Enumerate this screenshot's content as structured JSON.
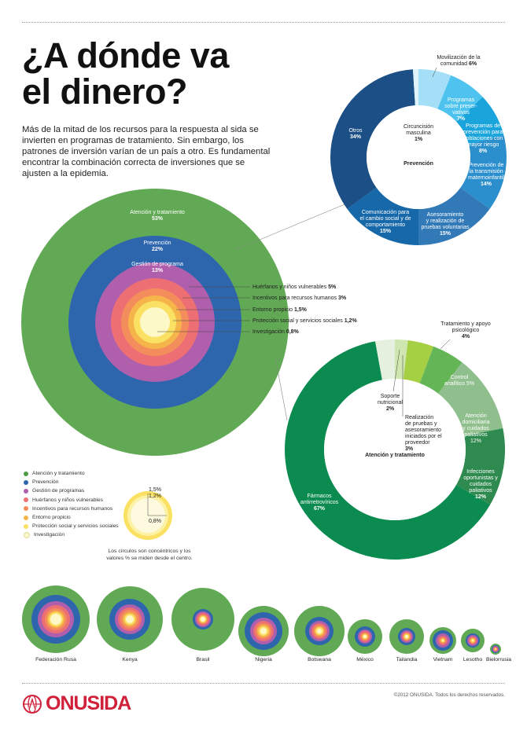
{
  "title_line1": "¿A dónde va",
  "title_line2": "el dinero?",
  "intro": "Más de la mitad de los recursos para la respuesta al sida se invierten en programas de tratamiento. Sin embargo, los patrones de inversión varían de un país a otro. Es fundamental encontrar la combinación correcta de inversiones que se ajusten a la epidemia.",
  "chart_data": [
    {
      "type": "concentric-circles",
      "rings": [
        {
          "name": "Atención y tratamiento",
          "value": 53,
          "label": "Atención y tratamiento",
          "value_label": "53%",
          "color": "#62a955"
        },
        {
          "name": "Prevención",
          "value": 22,
          "label": "Prevención",
          "value_label": "22%",
          "color": "#2e66ae"
        },
        {
          "name": "Gestión de programa",
          "value": 13,
          "label": "Gestión de programa",
          "value_label": "13%",
          "color": "#b05fad"
        },
        {
          "name": "Huérfanos y niños vulnerables",
          "value": 5,
          "label": "Huérfanos y niños vulnerables",
          "value_label": "5%",
          "color": "#ee6f73"
        },
        {
          "name": "Incentivos para recursos humanos",
          "value": 3,
          "label": "Incentivos para recursos humanos",
          "value_label": "3%",
          "color": "#f38e5c"
        },
        {
          "name": "Entorno propicio",
          "value": 1.5,
          "label": "Entorno propicio",
          "value_label": "1,5%",
          "color": "#f6b54a"
        },
        {
          "name": "Protección social y servicios sociales",
          "value": 1.2,
          "label": "Protección social y servicios sociales",
          "value_label": "1,2%",
          "color": "#fbe163"
        },
        {
          "name": "Investigación",
          "value": 0.8,
          "label": "Investigación",
          "value_label": "0,8%",
          "color": "#fdf8c8"
        }
      ]
    },
    {
      "type": "pie",
      "title": "Prevención",
      "slices": [
        {
          "label": "Movilización de la comunidad",
          "value": 6,
          "value_label": "6%",
          "color": "#a5dff7"
        },
        {
          "label": "Programas sobre preservativos",
          "value": 7,
          "value_label": "7%",
          "color": "#4fc3f0"
        },
        {
          "label": "Programas de prevención para poblaciones con mayor riesgo",
          "value": 8,
          "value_label": "8%",
          "color": "#1aa4dc"
        },
        {
          "label": "Prevención de la transmisión maternoinfantil",
          "value": 14,
          "value_label": "14%",
          "color": "#2c8fcd"
        },
        {
          "label": "Asesoramiento y realización de pruebas voluntarias",
          "value": 15,
          "value_label": "15%",
          "color": "#3279b8"
        },
        {
          "label": "Comunicación para el cambio social y de comportamiento",
          "value": 15,
          "value_label": "15%",
          "color": "#1668a8"
        },
        {
          "label": "Otros",
          "value": 34,
          "value_label": "34%",
          "color": "#1c4f86"
        },
        {
          "label": "Circuncisión masculina",
          "value": 1,
          "value_label": "1%",
          "color": "#dff3fb"
        }
      ]
    },
    {
      "type": "pie",
      "title": "Atención y tratamiento",
      "slices": [
        {
          "label": "Soporte nutricional",
          "value": 2,
          "value_label": "2%",
          "color": "#cfe6b0"
        },
        {
          "label": "Tratamiento y apoyo psicológico",
          "value": 4,
          "value_label": "4%",
          "color": "#a6d044"
        },
        {
          "label": "Control analítico",
          "value": 5,
          "value_label": "5%",
          "color": "#64b556"
        },
        {
          "label": "Atención domiciliaria y cuidados paliativos",
          "value": 12,
          "value_label": "12%",
          "color": "#8fbf8c"
        },
        {
          "label": "Infecciones oportunistas y cuidados paliativos",
          "value": 12,
          "value_label": "12%",
          "color": "#2e8a4e"
        },
        {
          "label": "Fármacos antirretrovíricos",
          "value": 67,
          "value_label": "67%",
          "color": "#0b8b4f"
        },
        {
          "label": "Realización de pruebas y asesoramiento iniciados por el proveedor",
          "value": 3,
          "value_label": "3%",
          "color": "#e6f0de"
        }
      ]
    }
  ],
  "legend": [
    {
      "label": "Atención y tratamiento",
      "color": "#4e9a45"
    },
    {
      "label": "Prevención",
      "color": "#2e66ae"
    },
    {
      "label": "Gestión de programas",
      "color": "#b05fad"
    },
    {
      "label": "Huérfanos y niños vulnerables",
      "color": "#ee6f73"
    },
    {
      "label": "Incentivos para recursos humanos",
      "color": "#f38e5c"
    },
    {
      "label": "Entorno propicio",
      "color": "#f6b54a"
    },
    {
      "label": "Protección social y servicios sociales",
      "color": "#fbe163"
    },
    {
      "label": "Investigación",
      "color": "#fdf8c8"
    }
  ],
  "mini_diagram": {
    "labels": [
      "1,5%",
      "1,2%",
      "0,8%"
    ]
  },
  "note": "Los círculos son concéntricos y los valores % se miden desde el centro.",
  "countries": [
    "Federación Rusa",
    "Kenya",
    "Brasil",
    "Nigeria",
    "Botswana",
    "México",
    "Tailandia",
    "Vietnam",
    "Lesotho",
    "Bielorrusia"
  ],
  "logo_text": "ONUSIDA",
  "copyright": "©2012 ONUSIDA. Todos los derechos reservados."
}
